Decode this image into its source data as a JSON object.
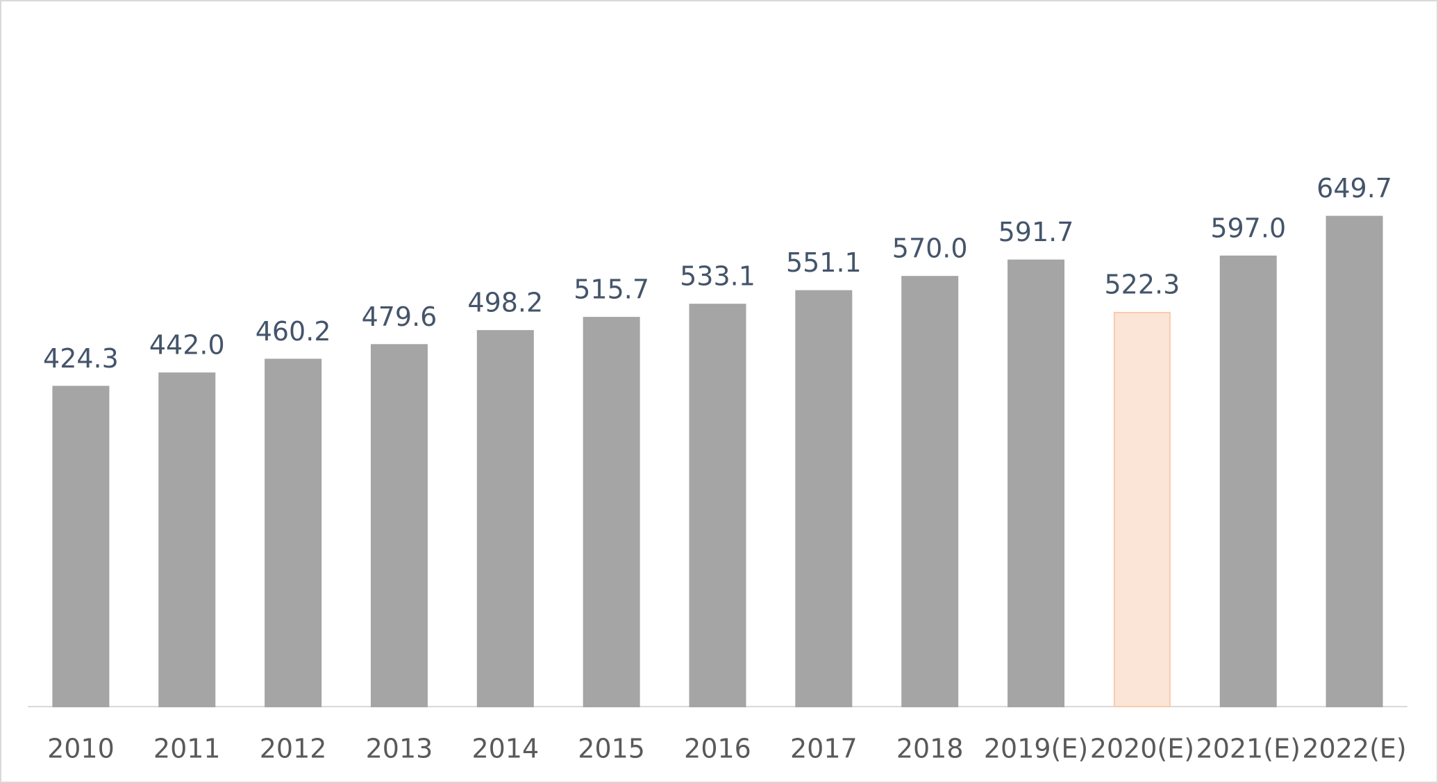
{
  "chart_data": {
    "type": "bar",
    "categories": [
      "2010",
      "2011",
      "2012",
      "2013",
      "2014",
      "2015",
      "2016",
      "2017",
      "2018",
      "2019(E)",
      "2020(E)",
      "2021(E)",
      "2022(E)"
    ],
    "values": [
      424.3,
      442,
      460.2,
      479.6,
      498.2,
      515.7,
      533.1,
      551.1,
      570,
      591.7,
      522.3,
      597,
      649.7
    ],
    "value_labels": [
      "424.3",
      "442.0",
      "460.2",
      "479.6",
      "498.2",
      "515.7",
      "533.1",
      "551.1",
      "570.0",
      "591.7",
      "522.3",
      "597.0",
      "649.7"
    ],
    "colors": [
      "#a5a5a5",
      "#a5a5a5",
      "#a5a5a5",
      "#a5a5a5",
      "#a5a5a5",
      "#a5a5a5",
      "#a5a5a5",
      "#a5a5a5",
      "#a5a5a5",
      "#a5a5a5",
      "#fbe5d6",
      "#a5a5a5",
      "#a5a5a5"
    ],
    "edgecolors": [
      "#a5a5a5",
      "#a5a5a5",
      "#a5a5a5",
      "#a5a5a5",
      "#a5a5a5",
      "#a5a5a5",
      "#a5a5a5",
      "#a5a5a5",
      "#a5a5a5",
      "#a5a5a5",
      "#f8cbad",
      "#a5a5a5",
      "#a5a5a5"
    ],
    "ylim": [
      0,
      700
    ],
    "grid": false
  }
}
